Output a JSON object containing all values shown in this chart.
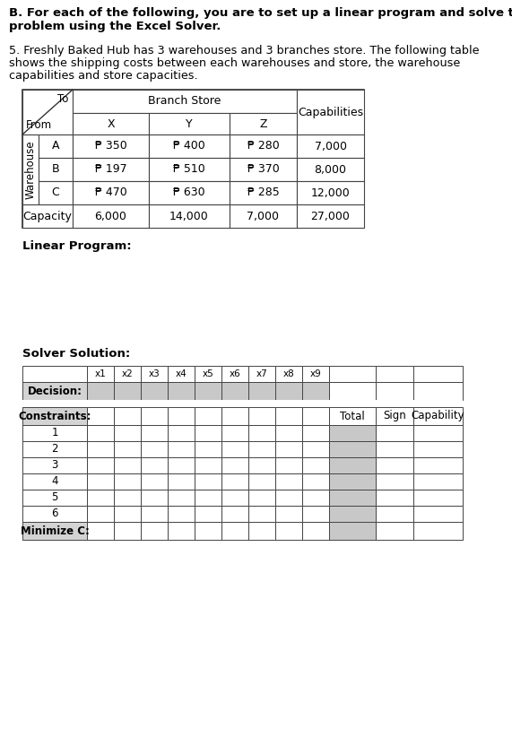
{
  "title_line1": "B. For each of the following, you are to set up a linear program and solve the",
  "title_line2": "   problem using the Excel Solver.",
  "prob_line1": "5. Freshly Baked Hub has 3 warehouses and 3 branches store. The following table",
  "prob_line2": "   shows the shipping costs between each warehouses and store, the warehouse",
  "prob_line3": "   capabilities and store capacities.",
  "branch_store_label": "Branch Store",
  "to_label": "To",
  "from_label": "From",
  "warehouse_label": "Warehouse",
  "capabilities_label": "Capabilities",
  "capacity_label": "Capacity",
  "col_headers": [
    "X",
    "Y",
    "Z"
  ],
  "row_headers": [
    "A",
    "B",
    "C"
  ],
  "costs": [
    [
      "₱ 350",
      "₱ 400",
      "₱ 280"
    ],
    [
      "₱ 197",
      "₱ 510",
      "₱ 370"
    ],
    [
      "₱ 470",
      "₱ 630",
      "₱ 285"
    ]
  ],
  "capabilities": [
    "7,000",
    "8,000",
    "12,000"
  ],
  "capacities": [
    "6,000",
    "14,000",
    "7,000",
    "27,000"
  ],
  "linear_program_label": "Linear Program:",
  "solver_solution_label": "Solver Solution:",
  "decision_label": "Decision:",
  "constraints_label": "Constraints:",
  "minimize_label": "Minimize C:",
  "x_headers": [
    "x1",
    "x2",
    "x3",
    "x4",
    "x5",
    "x6",
    "x7",
    "x8",
    "x9"
  ],
  "constraint_rows": [
    "1",
    "2",
    "3",
    "4",
    "5",
    "6"
  ],
  "total_label": "Total",
  "sign_label": "Sign",
  "capability_col_label": "Capability",
  "bg_color": "#ffffff",
  "header_gray": "#d3d3d3",
  "cell_gray": "#c8c8c8",
  "border_color": "#444444",
  "text_color": "#000000"
}
